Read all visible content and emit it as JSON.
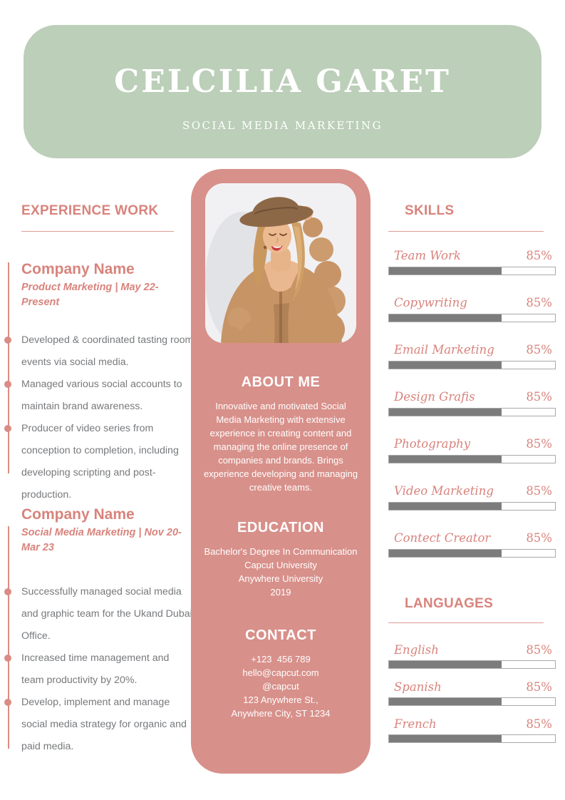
{
  "header": {
    "name": "CELCILIA GARET",
    "role": "SOCIAL MEDIA MARKETING"
  },
  "experience": {
    "heading": "EXPERIENCE WORK",
    "jobs": [
      {
        "company": "Company Name",
        "meta": "Product Marketing | May 22-Present",
        "bullets": [
          "Developed & coordinated tasting room events via social media.",
          "Managed various social accounts to maintain brand awareness.",
          "Producer of video series from conception to completion, including developing scripting and post-production."
        ]
      },
      {
        "company": "Company Name",
        "meta": "Social Media Marketing | Nov 20-Mar 23",
        "bullets": [
          "Successfully managed social media and graphic team for the Ukand Dubai Office.",
          "Increased time management and team productivity by 20%.",
          "Develop, implement and manage social media strategy for organic and paid media."
        ]
      }
    ]
  },
  "about": {
    "heading": "ABOUT ME",
    "text": "Innovative and motivated Social Media Marketing with extensive experience in creating content and managing the online presence of companies and brands. Brings experience developing and managing creative teams."
  },
  "education": {
    "heading": "EDUCATION",
    "lines": [
      "Bachelor's Degree In Communication",
      "Capcut University",
      "Anywhere University",
      "2019"
    ]
  },
  "contact": {
    "heading": "CONTACT",
    "lines": [
      "+123  456 789",
      "hello@capcut.com",
      "@capcut",
      "123 Anywhere St.,",
      "Anywhere City, ST 1234"
    ]
  },
  "skills": {
    "heading": "SKILLS",
    "items": [
      {
        "label": "Team Work",
        "percent": "85%",
        "fill": "68%"
      },
      {
        "label": "Copywriting",
        "percent": "85%",
        "fill": "68%"
      },
      {
        "label": "Email Marketing",
        "percent": "85%",
        "fill": "68%"
      },
      {
        "label": "Design Grafis",
        "percent": "85%",
        "fill": "68%"
      },
      {
        "label": "Photography",
        "percent": "85%",
        "fill": "68%"
      },
      {
        "label": "Video Marketing",
        "percent": "85%",
        "fill": "68%"
      },
      {
        "label": "Contect Creator",
        "percent": "85%",
        "fill": "68%"
      }
    ]
  },
  "languages": {
    "heading": "LANGUAGES",
    "items": [
      {
        "label": "English",
        "percent": "85%",
        "fill": "68%"
      },
      {
        "label": "Spanish",
        "percent": "85%",
        "fill": "68%"
      },
      {
        "label": "French",
        "percent": "85%",
        "fill": "68%"
      }
    ]
  },
  "photo": {
    "alt": "woman in brown hat and tan knit cardigan smiling"
  },
  "colors": {
    "header_green": "#bccfb9",
    "panel_pink": "#d8908a",
    "accent_salmon": "#d8837c",
    "bar_fill_gray": "#7c7c7c",
    "body_text_gray": "#77797c"
  }
}
